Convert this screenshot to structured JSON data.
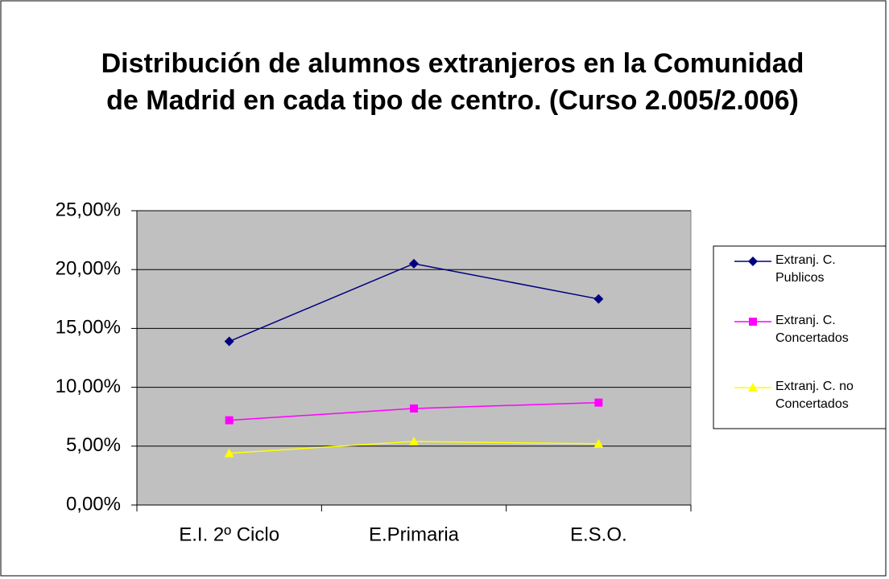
{
  "chart_data": {
    "type": "line",
    "title": "Distribución de alumnos extranjeros en la Comunidad de Madrid en cada tipo de centro. (Curso 2.005/2.006)",
    "categories": [
      "E.I. 2º Ciclo",
      "E.Primaria",
      "E.S.O."
    ],
    "series": [
      {
        "name": "Extranj. C. Publicos",
        "color": "#000080",
        "marker": "diamond",
        "values": [
          13.9,
          20.5,
          17.5
        ]
      },
      {
        "name": "Extranj. C. Concertados",
        "color": "#ff00ff",
        "marker": "square",
        "values": [
          7.2,
          8.2,
          8.7
        ]
      },
      {
        "name": "Extranj. C. no Concertados",
        "color": "#ffff00",
        "marker": "triangle",
        "values": [
          4.4,
          5.4,
          5.2
        ]
      }
    ],
    "ylim": [
      0,
      25
    ],
    "yticks": [
      {
        "value": 0,
        "label": "0,00%"
      },
      {
        "value": 5,
        "label": "5,00%"
      },
      {
        "value": 10,
        "label": "10,00%"
      },
      {
        "value": 15,
        "label": "15,00%"
      },
      {
        "value": 20,
        "label": "20,00%"
      },
      {
        "value": 25,
        "label": "25,00%"
      }
    ],
    "grid": true,
    "legend": "right"
  }
}
